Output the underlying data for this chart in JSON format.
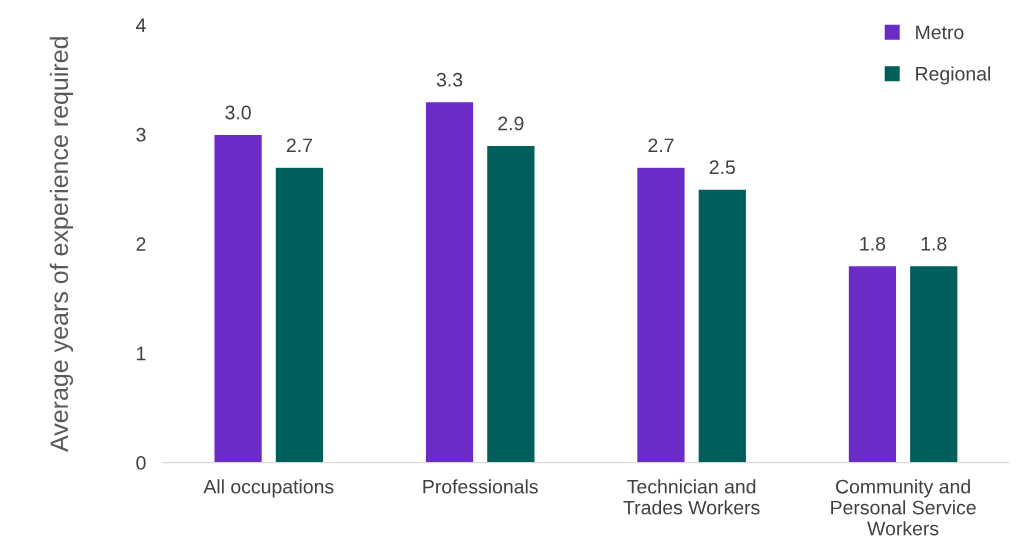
{
  "chart_data": {
    "type": "bar",
    "ylabel": "Average years of experience required",
    "categories": [
      "All occupations",
      "Professionals",
      "Technician and Trades Workers",
      "Community and Personal Service Workers"
    ],
    "series": [
      {
        "name": "Metro",
        "color": "#6a2bc6",
        "values": [
          3.0,
          3.3,
          2.7,
          1.8
        ],
        "value_labels": [
          "3.0",
          "3.3",
          "2.7",
          "1.8"
        ]
      },
      {
        "name": "Regional",
        "color": "#005f5b",
        "values": [
          2.7,
          2.9,
          2.5,
          1.8
        ],
        "value_labels": [
          "2.7",
          "2.9",
          "2.5",
          "1.8"
        ]
      }
    ],
    "ylim": [
      0,
      4
    ],
    "yticks": [
      0,
      1,
      2,
      3,
      4
    ],
    "grid": false,
    "legend": "top right"
  }
}
